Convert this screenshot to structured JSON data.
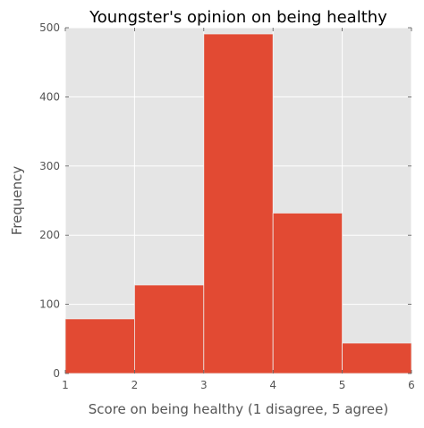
{
  "chart_data": {
    "type": "bar",
    "title": "Youngster's opinion on being healthy",
    "xlabel": "Score on being healthy (1 disagree, 5 agree)",
    "ylabel": "Frequency",
    "bins": [
      {
        "x0": 1,
        "x1": 2,
        "value": 79
      },
      {
        "x0": 2,
        "x1": 3,
        "value": 128
      },
      {
        "x0": 3,
        "x1": 4,
        "value": 491
      },
      {
        "x0": 4,
        "x1": 5,
        "value": 232
      },
      {
        "x0": 5,
        "x1": 6,
        "value": 44
      }
    ],
    "xlim": [
      1,
      6
    ],
    "ylim": [
      0,
      500
    ],
    "xticks": [
      1,
      2,
      3,
      4,
      5,
      6
    ],
    "yticks": [
      0,
      100,
      200,
      300,
      400,
      500
    ],
    "grid": true,
    "legend": "none",
    "colors": {
      "bar": "#E24A33",
      "bar_edge": "#EEEEEE",
      "plot_background": "#E5E5E5",
      "grid": "#FFFFFF",
      "text": "#555555",
      "title": "#000000"
    }
  }
}
